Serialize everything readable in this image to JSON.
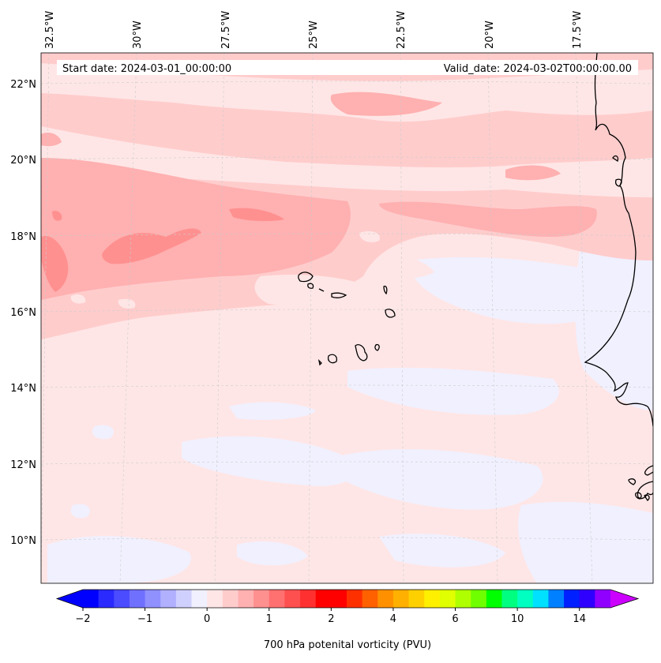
{
  "header": {
    "start_date": "Start date: 2024-03-01_00:00:00",
    "valid_date": "Valid_date: 2024-03-02T00:00:00.00"
  },
  "map": {
    "region": "Cape Verde / West Africa",
    "lon_labels": [
      "32.5°W",
      "30°W",
      "27.5°W",
      "25°W",
      "22.5°W",
      "20°W",
      "17.5°W"
    ],
    "lat_labels": [
      "22°N",
      "20°N",
      "18°N",
      "16°N",
      "14°N",
      "12°N",
      "10°N"
    ]
  },
  "colorbar": {
    "label": "700 hPa potenital vorticity (PVU)",
    "tick_labels": [
      "−2",
      "−1",
      "0",
      "1",
      "2",
      "4",
      "6",
      "10",
      "14"
    ],
    "tick_values": [
      -2,
      -1,
      0,
      1,
      2,
      4,
      6,
      10,
      14
    ],
    "colors": [
      "#0000ff",
      "#2a2aff",
      "#4b4bff",
      "#7070ff",
      "#9090ff",
      "#b0b0ff",
      "#d0d0ff",
      "#f0f0ff",
      "#ffe6e6",
      "#ffcccc",
      "#ffb0b0",
      "#ff9090",
      "#ff7070",
      "#ff5050",
      "#ff3030",
      "#ff0000",
      "#ff0000",
      "#ff3000",
      "#ff6000",
      "#ff9000",
      "#ffb000",
      "#ffd000",
      "#fff000",
      "#e0ff00",
      "#b0ff00",
      "#70ff00",
      "#00ff00",
      "#00ff80",
      "#00ffc0",
      "#00e0ff",
      "#0080ff",
      "#0020ff",
      "#3000ff",
      "#9000ff"
    ],
    "extend_low_color": "#0000ff",
    "extend_high_color": "#cc00ff"
  }
}
